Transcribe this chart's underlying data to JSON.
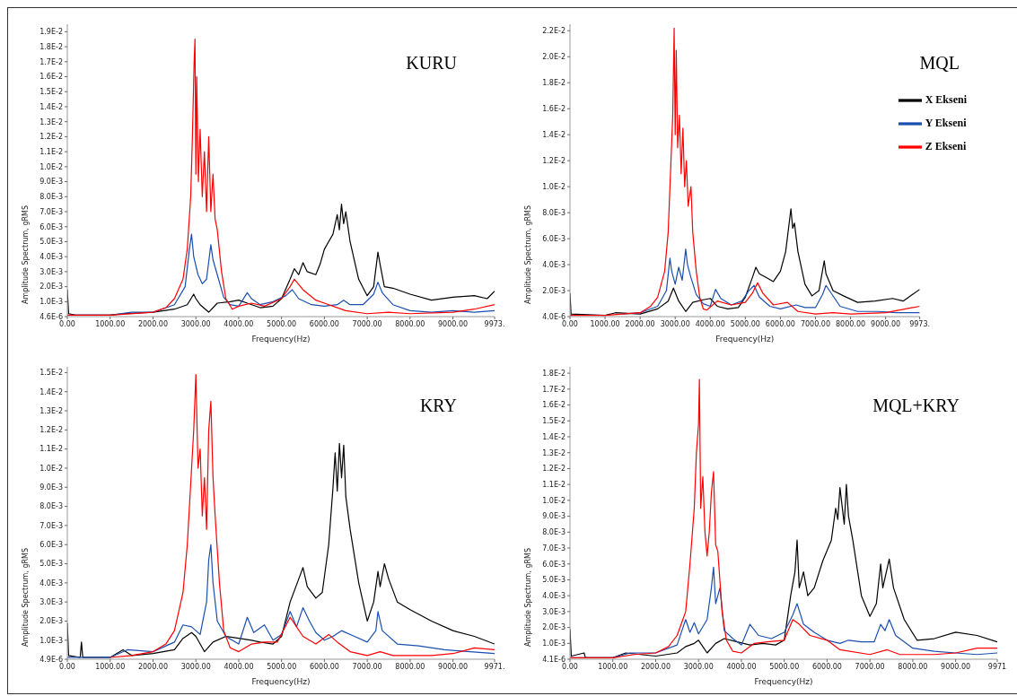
{
  "chart_data": [
    {
      "type": "line",
      "title": "KURU",
      "xlabel": "Frequency(Hz)",
      "ylabel": "Amplitude Spectrum, gRMS",
      "legend": false,
      "xlim": [
        0,
        9973
      ],
      "xticks": [
        {
          "value": 0,
          "label": "0.00"
        },
        {
          "value": 1000,
          "label": "1000.00"
        },
        {
          "value": 2000,
          "label": "2000.00"
        },
        {
          "value": 3000,
          "label": "3000.00"
        },
        {
          "value": 4000,
          "label": "4000.00"
        },
        {
          "value": 5000,
          "label": "5000.00"
        },
        {
          "value": 6000,
          "label": "6000.00"
        },
        {
          "value": 7000,
          "label": "7000.00"
        },
        {
          "value": 8000,
          "label": "8000.00"
        },
        {
          "value": 9000,
          "label": "9000.00"
        },
        {
          "value": 9973,
          "label": "9973."
        }
      ],
      "ylim": [
        4.6e-06,
        0.0195
      ],
      "yticks": [
        {
          "value": 4.6e-06,
          "label": "4.6E-6"
        },
        {
          "value": 0.001,
          "label": "1.0E-3"
        },
        {
          "value": 0.002,
          "label": "2.0E-3"
        },
        {
          "value": 0.003,
          "label": "3.0E-3"
        },
        {
          "value": 0.004,
          "label": "4.0E-3"
        },
        {
          "value": 0.005,
          "label": "5.0E-3"
        },
        {
          "value": 0.006,
          "label": "6.0E-3"
        },
        {
          "value": 0.007,
          "label": "7.0E-3"
        },
        {
          "value": 0.008,
          "label": "8.0E-3"
        },
        {
          "value": 0.009,
          "label": "9.0E-3"
        },
        {
          "value": 0.01,
          "label": "1.0E-2"
        },
        {
          "value": 0.011,
          "label": "1.1E-2"
        },
        {
          "value": 0.012,
          "label": "1.2E-2"
        },
        {
          "value": 0.013,
          "label": "1.3E-2"
        },
        {
          "value": 0.014,
          "label": "1.4E-2"
        },
        {
          "value": 0.015,
          "label": "1.5E-2"
        },
        {
          "value": 0.016,
          "label": "1.6E-2"
        },
        {
          "value": 0.017,
          "label": "1.7E-2"
        },
        {
          "value": 0.018,
          "label": "1.8E-2"
        },
        {
          "value": 0.019,
          "label": "1.9E-2"
        }
      ],
      "series": [
        {
          "color": "#000000",
          "x": [
            0,
            30,
            200,
            1000,
            1300,
            2000,
            2500,
            2800,
            2950,
            3000,
            3100,
            3300,
            3500,
            3800,
            4000,
            4200,
            4500,
            4800,
            5000,
            5200,
            5300,
            5400,
            5500,
            5600,
            5800,
            5900,
            6000,
            6100,
            6200,
            6300,
            6350,
            6400,
            6450,
            6500,
            6600,
            6800,
            7000,
            7150,
            7250,
            7300,
            7400,
            7600,
            8000,
            8500,
            9000,
            9500,
            9800,
            9973
          ],
          "values": [
            0.0018,
            0.0002,
            0.0001,
            0.0001,
            0.0002,
            0.0003,
            0.0005,
            0.0008,
            0.0015,
            0.0012,
            0.0008,
            0.0003,
            0.0009,
            0.001,
            0.0011,
            0.0009,
            0.0006,
            0.0007,
            0.0012,
            0.0025,
            0.0032,
            0.0028,
            0.0036,
            0.003,
            0.0028,
            0.0035,
            0.0045,
            0.005,
            0.0055,
            0.0068,
            0.0058,
            0.0075,
            0.0062,
            0.007,
            0.005,
            0.0025,
            0.0014,
            0.002,
            0.0043,
            0.0035,
            0.002,
            0.0019,
            0.0015,
            0.0011,
            0.0013,
            0.0014,
            0.0012,
            0.0017
          ]
        },
        {
          "color": "#1a4fb0",
          "x": [
            0,
            1000,
            1500,
            2000,
            2500,
            2750,
            2850,
            2900,
            2950,
            3050,
            3150,
            3250,
            3350,
            3400,
            3500,
            3650,
            3800,
            4000,
            4200,
            4300,
            4500,
            4800,
            5100,
            5250,
            5400,
            5700,
            6000,
            6300,
            6450,
            6600,
            6900,
            7150,
            7250,
            7350,
            7600,
            8000,
            8500,
            9000,
            9500,
            9973
          ],
          "values": [
            0.0001,
            0.0001,
            0.0003,
            0.0003,
            0.0008,
            0.002,
            0.0045,
            0.0055,
            0.004,
            0.0028,
            0.0022,
            0.0025,
            0.0048,
            0.0038,
            0.0028,
            0.0013,
            0.0008,
            0.0007,
            0.0016,
            0.0012,
            0.0008,
            0.001,
            0.0014,
            0.0018,
            0.0012,
            0.0008,
            0.0007,
            0.0008,
            0.0011,
            0.0008,
            0.0008,
            0.0015,
            0.0023,
            0.0016,
            0.0008,
            0.0004,
            0.0003,
            0.0004,
            0.0003,
            0.0004
          ]
        },
        {
          "color": "#ff0000",
          "x": [
            0,
            1000,
            2000,
            2300,
            2500,
            2700,
            2800,
            2880,
            2920,
            2960,
            2980,
            3000,
            3020,
            3060,
            3100,
            3150,
            3200,
            3250,
            3300,
            3350,
            3400,
            3450,
            3500,
            3600,
            3700,
            3850,
            4000,
            4300,
            4600,
            5000,
            5200,
            5300,
            5500,
            5800,
            6000,
            6500,
            7000,
            7500,
            8000,
            9000,
            9500,
            9973
          ],
          "values": [
            0.0001,
            0.0001,
            0.0003,
            0.0006,
            0.0012,
            0.0025,
            0.0045,
            0.008,
            0.012,
            0.017,
            0.0185,
            0.0095,
            0.016,
            0.009,
            0.0125,
            0.008,
            0.011,
            0.007,
            0.012,
            0.007,
            0.0095,
            0.0065,
            0.0058,
            0.003,
            0.0012,
            0.0005,
            0.0007,
            0.0009,
            0.0007,
            0.0012,
            0.002,
            0.0025,
            0.0018,
            0.0011,
            0.0009,
            0.0004,
            0.0002,
            0.0003,
            0.0002,
            0.0003,
            0.0005,
            0.0008
          ]
        }
      ]
    },
    {
      "type": "line",
      "title": "MQL",
      "xlabel": "Frequency(Hz)",
      "ylabel": "Amplitude Spectrum, gRMS",
      "legend": "top right",
      "xlim": [
        0,
        9973
      ],
      "xticks": [
        {
          "value": 0,
          "label": "0.00"
        },
        {
          "value": 1000,
          "label": "1000.00"
        },
        {
          "value": 2000,
          "label": "2000.00"
        },
        {
          "value": 3000,
          "label": "3000.00"
        },
        {
          "value": 4000,
          "label": "4000.00"
        },
        {
          "value": 5000,
          "label": "5000.00"
        },
        {
          "value": 6000,
          "label": "6000.00"
        },
        {
          "value": 7000,
          "label": "7000.00"
        },
        {
          "value": 8000,
          "label": "8000.00"
        },
        {
          "value": 9000,
          "label": "9000.00"
        },
        {
          "value": 9973,
          "label": "9973."
        }
      ],
      "ylim": [
        4e-06,
        0.0225
      ],
      "yticks": [
        {
          "value": 4e-06,
          "label": "4.0E-6"
        },
        {
          "value": 0.002,
          "label": "2.0E-3"
        },
        {
          "value": 0.004,
          "label": "4.0E-3"
        },
        {
          "value": 0.006,
          "label": "6.0E-3"
        },
        {
          "value": 0.008,
          "label": "8.0E-3"
        },
        {
          "value": 0.01,
          "label": "1.0E-2"
        },
        {
          "value": 0.012,
          "label": "1.2E-2"
        },
        {
          "value": 0.014,
          "label": "1.4E-2"
        },
        {
          "value": 0.016,
          "label": "1.6E-2"
        },
        {
          "value": 0.018,
          "label": "1.8E-2"
        },
        {
          "value": 0.02,
          "label": "2.0E-2"
        },
        {
          "value": 0.022,
          "label": "2.2E-2"
        }
      ],
      "series": [
        {
          "name": "X Ekseni",
          "color": "#000000",
          "x": [
            0,
            30,
            1000,
            1300,
            2000,
            2500,
            2800,
            2950,
            3100,
            3300,
            3500,
            3800,
            4000,
            4200,
            4500,
            4800,
            5000,
            5200,
            5300,
            5400,
            5600,
            5800,
            6000,
            6150,
            6250,
            6300,
            6350,
            6400,
            6500,
            6700,
            6900,
            7100,
            7250,
            7300,
            7500,
            7800,
            8200,
            8700,
            9200,
            9500,
            9973
          ],
          "values": [
            0.0018,
            0.0002,
            0.0001,
            0.0003,
            0.0002,
            0.0006,
            0.0012,
            0.0022,
            0.0012,
            0.0004,
            0.0011,
            0.0013,
            0.0014,
            0.0008,
            0.0006,
            0.0007,
            0.0015,
            0.003,
            0.0038,
            0.0033,
            0.003,
            0.0027,
            0.0035,
            0.005,
            0.0072,
            0.0083,
            0.0068,
            0.0072,
            0.005,
            0.0025,
            0.0016,
            0.002,
            0.0043,
            0.0033,
            0.002,
            0.0016,
            0.0011,
            0.0012,
            0.0014,
            0.0012,
            0.0021
          ]
        },
        {
          "name": "Y Ekseni",
          "color": "#1a4fb0",
          "x": [
            1500,
            2000,
            2500,
            2750,
            2850,
            2900,
            3000,
            3100,
            3200,
            3300,
            3350,
            3450,
            3600,
            3800,
            4000,
            4150,
            4300,
            4600,
            4900,
            5100,
            5250,
            5400,
            5700,
            6000,
            6450,
            6700,
            7000,
            7200,
            7300,
            7450,
            7700,
            8200,
            8800,
            9300,
            9973
          ],
          "values": [
            0.0002,
            0.0003,
            0.0008,
            0.002,
            0.0045,
            0.0035,
            0.0025,
            0.0038,
            0.0028,
            0.0052,
            0.004,
            0.003,
            0.0017,
            0.001,
            0.0008,
            0.0021,
            0.0014,
            0.0009,
            0.0012,
            0.002,
            0.0024,
            0.0015,
            0.0008,
            0.0006,
            0.0009,
            0.0007,
            0.0007,
            0.0017,
            0.0024,
            0.0018,
            0.0008,
            0.0004,
            0.0004,
            0.0003,
            0.0003
          ]
        },
        {
          "name": "Z Ekseni",
          "color": "#ff0000",
          "x": [
            0,
            1000,
            2000,
            2300,
            2500,
            2700,
            2800,
            2880,
            2930,
            2970,
            3000,
            3030,
            3070,
            3120,
            3170,
            3220,
            3270,
            3320,
            3370,
            3450,
            3500,
            3600,
            3700,
            3800,
            3900,
            4200,
            4600,
            5000,
            5200,
            5350,
            5500,
            5800,
            6200,
            6500,
            7000,
            7500,
            8000,
            9000,
            9973
          ],
          "values": [
            0.0001,
            0.0001,
            0.0003,
            0.0008,
            0.0015,
            0.0035,
            0.0065,
            0.012,
            0.0155,
            0.0222,
            0.014,
            0.0205,
            0.013,
            0.0155,
            0.011,
            0.0145,
            0.01,
            0.012,
            0.0085,
            0.01,
            0.0065,
            0.0035,
            0.0015,
            0.0006,
            0.0005,
            0.0012,
            0.0009,
            0.0011,
            0.0018,
            0.0026,
            0.0018,
            0.0009,
            0.0011,
            0.0004,
            0.0002,
            0.0003,
            0.0002,
            0.0003,
            0.0008
          ]
        }
      ]
    },
    {
      "type": "line",
      "title": "KRY",
      "xlabel": "Frequency(Hz)",
      "ylabel": "Amplitude Spectrum, gRMS",
      "legend": false,
      "xlim": [
        0,
        9971
      ],
      "xticks": [
        {
          "value": 0,
          "label": "0.00"
        },
        {
          "value": 1000,
          "label": "1000.00"
        },
        {
          "value": 2000,
          "label": "2000.00"
        },
        {
          "value": 3000,
          "label": "3000.00"
        },
        {
          "value": 4000,
          "label": "4000.00"
        },
        {
          "value": 5000,
          "label": "5000.00"
        },
        {
          "value": 6000,
          "label": "6000.00"
        },
        {
          "value": 7000,
          "label": "7000.00"
        },
        {
          "value": 8000,
          "label": "8000.00"
        },
        {
          "value": 9000,
          "label": "9000.00"
        },
        {
          "value": 9971,
          "label": "9971."
        }
      ],
      "ylim": [
        4.9e-06,
        0.0153
      ],
      "yticks": [
        {
          "value": 4.9e-06,
          "label": "4.9E-6"
        },
        {
          "value": 0.001,
          "label": "1.0E-3"
        },
        {
          "value": 0.002,
          "label": "2.0E-3"
        },
        {
          "value": 0.003,
          "label": "3.0E-3"
        },
        {
          "value": 0.004,
          "label": "4.0E-3"
        },
        {
          "value": 0.005,
          "label": "5.0E-3"
        },
        {
          "value": 0.006,
          "label": "6.0E-3"
        },
        {
          "value": 0.007,
          "label": "7.0E-3"
        },
        {
          "value": 0.008,
          "label": "8.0E-3"
        },
        {
          "value": 0.009,
          "label": "9.0E-3"
        },
        {
          "value": 0.01,
          "label": "1.0E-2"
        },
        {
          "value": 0.011,
          "label": "1.1E-2"
        },
        {
          "value": 0.012,
          "label": "1.2E-2"
        },
        {
          "value": 0.013,
          "label": "1.3E-2"
        },
        {
          "value": 0.014,
          "label": "1.4E-2"
        },
        {
          "value": 0.015,
          "label": "1.5E-2"
        }
      ],
      "series": [
        {
          "color": "#000000",
          "x": [
            0,
            30,
            300,
            330,
            360,
            1000,
            1300,
            1500,
            2000,
            2500,
            2700,
            2900,
            3000,
            3200,
            3400,
            3700,
            4000,
            4300,
            4500,
            4800,
            5000,
            5200,
            5400,
            5500,
            5600,
            5800,
            5950,
            6100,
            6200,
            6250,
            6300,
            6350,
            6400,
            6450,
            6500,
            6600,
            6800,
            7000,
            7150,
            7250,
            7300,
            7400,
            7500,
            7700,
            8000,
            8500,
            9000,
            9500,
            9971
          ],
          "values": [
            0.0019,
            0.0002,
            0.0001,
            0.0009,
            0.0001,
            0.0001,
            0.0005,
            0.0002,
            0.0003,
            0.0005,
            0.0011,
            0.0014,
            0.0012,
            0.0004,
            0.0009,
            0.0012,
            0.0011,
            0.001,
            0.0009,
            0.0008,
            0.0012,
            0.003,
            0.0042,
            0.0048,
            0.0038,
            0.0032,
            0.0035,
            0.006,
            0.009,
            0.0108,
            0.0088,
            0.0113,
            0.0095,
            0.0112,
            0.0085,
            0.0068,
            0.004,
            0.002,
            0.003,
            0.0046,
            0.0038,
            0.005,
            0.0042,
            0.003,
            0.0026,
            0.002,
            0.0015,
            0.0012,
            0.0008
          ]
        },
        {
          "color": "#1a4fb0",
          "x": [
            0,
            1000,
            1400,
            2000,
            2500,
            2700,
            2900,
            3100,
            3250,
            3300,
            3350,
            3400,
            3500,
            3700,
            4000,
            4200,
            4350,
            4600,
            4800,
            5000,
            5200,
            5350,
            5500,
            5650,
            5800,
            6000,
            6200,
            6400,
            6700,
            7000,
            7200,
            7250,
            7350,
            7700,
            8200,
            8800,
            9400,
            9971
          ],
          "values": [
            0.0001,
            0.0001,
            0.0005,
            0.0004,
            0.0009,
            0.0018,
            0.0017,
            0.0013,
            0.003,
            0.0052,
            0.006,
            0.004,
            0.002,
            0.0012,
            0.0008,
            0.0022,
            0.0014,
            0.0018,
            0.001,
            0.0013,
            0.0025,
            0.0017,
            0.0027,
            0.002,
            0.0014,
            0.001,
            0.0012,
            0.0015,
            0.0012,
            0.0009,
            0.0015,
            0.0025,
            0.0015,
            0.0008,
            0.0007,
            0.0005,
            0.0004,
            0.0003
          ]
        },
        {
          "color": "#ff0000",
          "x": [
            1000,
            1500,
            2000,
            2300,
            2500,
            2600,
            2700,
            2800,
            2900,
            2950,
            3000,
            3050,
            3100,
            3150,
            3200,
            3250,
            3300,
            3350,
            3400,
            3450,
            3550,
            3650,
            3800,
            4000,
            4300,
            4600,
            4900,
            5200,
            5350,
            5500,
            5800,
            6100,
            6300,
            6600,
            7000,
            7300,
            7600,
            8500,
            9000,
            9500,
            9971
          ],
          "values": [
            0.0001,
            0.0002,
            0.0004,
            0.0008,
            0.0015,
            0.0025,
            0.0035,
            0.006,
            0.01,
            0.012,
            0.0149,
            0.01,
            0.011,
            0.0075,
            0.0095,
            0.0068,
            0.012,
            0.0135,
            0.0095,
            0.0075,
            0.004,
            0.0015,
            0.0006,
            0.0004,
            0.0008,
            0.0009,
            0.0009,
            0.0022,
            0.0017,
            0.0012,
            0.0008,
            0.0013,
            0.0009,
            0.0004,
            0.0002,
            0.0004,
            0.0002,
            0.0002,
            0.0003,
            0.0006,
            0.0005
          ]
        }
      ]
    },
    {
      "type": "line",
      "title": "MQL+KRY",
      "xlabel": "Frequency(Hz)",
      "ylabel": "Amplitude Spectrum, gRMS",
      "legend": false,
      "xlim": [
        0,
        9971
      ],
      "xticks": [
        {
          "value": 0,
          "label": "0.00"
        },
        {
          "value": 1000,
          "label": "1000.00"
        },
        {
          "value": 2000,
          "label": "2000.00"
        },
        {
          "value": 3000,
          "label": "3000.00"
        },
        {
          "value": 4000,
          "label": "4000.00"
        },
        {
          "value": 5000,
          "label": "5000.00"
        },
        {
          "value": 6000,
          "label": "6000.00"
        },
        {
          "value": 7000,
          "label": "7000.00"
        },
        {
          "value": 8000,
          "label": "8000.00"
        },
        {
          "value": 9000,
          "label": "9000.00"
        },
        9971
      ],
      "ylim": [
        4.1e-06,
        0.0184
      ],
      "yticks": [
        {
          "value": 4.1e-06,
          "label": "4.1E-6"
        },
        {
          "value": 0.001,
          "label": "1.0E-3"
        },
        {
          "value": 0.002,
          "label": "2.0E-3"
        },
        {
          "value": 0.003,
          "label": "3.0E-3"
        },
        {
          "value": 0.004,
          "label": "4.0E-3"
        },
        {
          "value": 0.005,
          "label": "5.0E-3"
        },
        {
          "value": 0.006,
          "label": "6.0E-3"
        },
        {
          "value": 0.007,
          "label": "7.0E-3"
        },
        {
          "value": 0.008,
          "label": "8.0E-3"
        },
        {
          "value": 0.009,
          "label": "9.0E-3"
        },
        {
          "value": 0.01,
          "label": "1.0E-2"
        },
        {
          "value": 0.011,
          "label": "1.1E-2"
        },
        {
          "value": 0.012,
          "label": "1.2E-2"
        },
        {
          "value": 0.013,
          "label": "1.3E-2"
        },
        {
          "value": 0.014,
          "label": "1.4E-2"
        },
        {
          "value": 0.015,
          "label": "1.5E-2"
        },
        {
          "value": 0.016,
          "label": "1.6E-2"
        },
        {
          "value": 0.017,
          "label": "1.7E-2"
        },
        {
          "value": 0.018,
          "label": "1.8E-2"
        }
      ],
      "series": [
        {
          "color": "#000000",
          "x": [
            0,
            30,
            330,
            360,
            1000,
            1300,
            2000,
            2500,
            2700,
            2900,
            3000,
            3200,
            3400,
            3600,
            3900,
            4200,
            4500,
            4800,
            5000,
            5150,
            5250,
            5300,
            5350,
            5450,
            5550,
            5700,
            5900,
            6100,
            6200,
            6250,
            6300,
            6400,
            6450,
            6500,
            6600,
            6800,
            7000,
            7150,
            7250,
            7300,
            7450,
            7550,
            7800,
            8100,
            8500,
            9000,
            9500,
            9971
          ],
          "values": [
            0.0019,
            0.0002,
            0.0004,
            0.0001,
            0.0001,
            0.0004,
            0.0002,
            0.0004,
            0.0008,
            0.001,
            0.0012,
            0.0004,
            0.001,
            0.0013,
            0.0011,
            0.0009,
            0.001,
            0.0009,
            0.0012,
            0.004,
            0.0055,
            0.0075,
            0.0045,
            0.0055,
            0.004,
            0.0045,
            0.0062,
            0.0075,
            0.0095,
            0.0088,
            0.0108,
            0.0085,
            0.011,
            0.009,
            0.0075,
            0.004,
            0.0027,
            0.0035,
            0.006,
            0.0045,
            0.0063,
            0.0045,
            0.0025,
            0.0012,
            0.0013,
            0.0017,
            0.0015,
            0.0011
          ]
        },
        {
          "color": "#1a4fb0",
          "x": [
            0,
            1000,
            1400,
            2000,
            2500,
            2700,
            2800,
            2900,
            3000,
            3200,
            3300,
            3350,
            3400,
            3500,
            3600,
            3800,
            4000,
            4200,
            4400,
            4700,
            5000,
            5200,
            5300,
            5450,
            5700,
            6000,
            6300,
            6500,
            6800,
            7100,
            7250,
            7350,
            7450,
            7600,
            8000,
            8500,
            9000,
            9500,
            9971
          ],
          "values": [
            0.0001,
            0.0001,
            0.0004,
            0.0004,
            0.0009,
            0.0025,
            0.0017,
            0.0023,
            0.0016,
            0.0025,
            0.0045,
            0.0058,
            0.0035,
            0.0045,
            0.0018,
            0.0013,
            0.0009,
            0.0022,
            0.0015,
            0.0013,
            0.0017,
            0.0028,
            0.0035,
            0.0022,
            0.0017,
            0.0012,
            0.001,
            0.0012,
            0.0011,
            0.0011,
            0.0022,
            0.0018,
            0.0025,
            0.0015,
            0.0007,
            0.0005,
            0.0004,
            0.0003,
            0.0004
          ]
        },
        {
          "color": "#ff0000",
          "x": [
            0,
            1000,
            1500,
            2000,
            2300,
            2500,
            2700,
            2800,
            2900,
            2950,
            3000,
            3020,
            3050,
            3100,
            3150,
            3200,
            3250,
            3300,
            3350,
            3400,
            3450,
            3550,
            3650,
            3800,
            4000,
            4300,
            4600,
            5000,
            5200,
            5350,
            5600,
            6000,
            6300,
            7000,
            7400,
            7700,
            8500,
            9000,
            9500,
            9971
          ],
          "values": [
            0.0001,
            0.0001,
            0.0003,
            0.0004,
            0.0008,
            0.0015,
            0.003,
            0.006,
            0.0095,
            0.013,
            0.0148,
            0.0176,
            0.0095,
            0.0115,
            0.008,
            0.0065,
            0.008,
            0.0105,
            0.0118,
            0.0072,
            0.0068,
            0.003,
            0.0012,
            0.0005,
            0.0004,
            0.001,
            0.0011,
            0.0012,
            0.0025,
            0.0022,
            0.0015,
            0.0012,
            0.0006,
            0.0003,
            0.0006,
            0.0003,
            0.0003,
            0.0004,
            0.0007,
            0.0007
          ]
        }
      ]
    }
  ]
}
